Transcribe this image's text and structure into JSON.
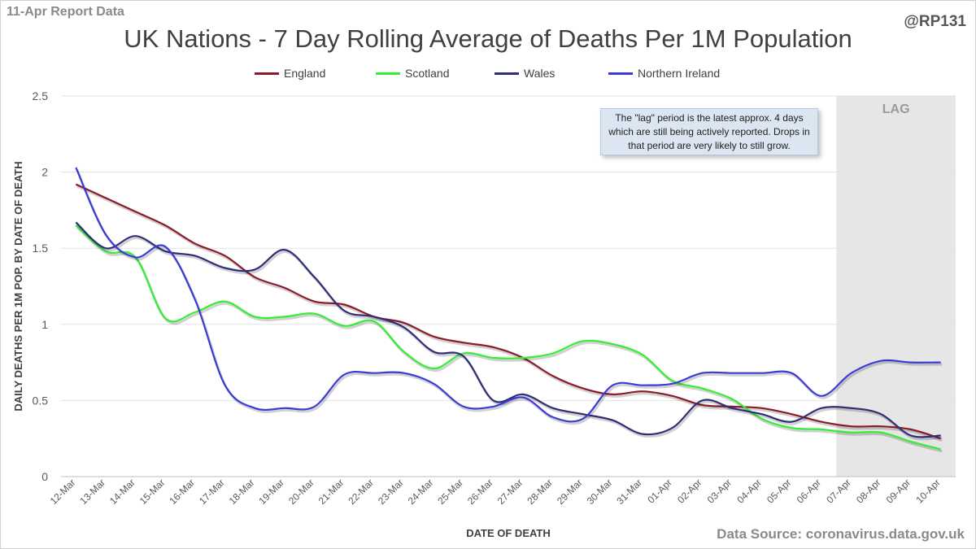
{
  "header": {
    "report_label": "11-Apr Report Data",
    "handle": "@RP131"
  },
  "footer": {
    "source": "Data Source: coronavirus.data.gov.uk"
  },
  "note": "The \"lag\" period is the latest approx. 4 days which are still being actively reported. Drops in that period are very likely to still grow.",
  "chart_data": {
    "type": "line",
    "title": "UK Nations - 7 Day Rolling Average of Deaths Per 1M Population",
    "xlabel": "DATE OF DEATH",
    "ylabel": "DAILY DEATHS PER 1M POP. BY DATE OF DEATH",
    "ylim": [
      0,
      2.5
    ],
    "yticks": [
      "0",
      "0.5",
      "1",
      "1.5",
      "2",
      "2.5"
    ],
    "grid": "horizontal",
    "legend": "top",
    "lag_label": "LAG",
    "lag_start": "07-Apr",
    "categories": [
      "12-Mar",
      "13-Mar",
      "14-Mar",
      "15-Mar",
      "16-Mar",
      "17-Mar",
      "18-Mar",
      "19-Mar",
      "20-Mar",
      "21-Mar",
      "22-Mar",
      "23-Mar",
      "24-Mar",
      "25-Mar",
      "26-Mar",
      "27-Mar",
      "28-Mar",
      "29-Mar",
      "30-Mar",
      "31-Mar",
      "01-Apr",
      "02-Apr",
      "03-Apr",
      "04-Apr",
      "05-Apr",
      "06-Apr",
      "07-Apr",
      "08-Apr",
      "09-Apr",
      "10-Apr"
    ],
    "series": [
      {
        "name": "England",
        "color": "#8b1a2b",
        "values": [
          1.92,
          1.83,
          1.74,
          1.65,
          1.53,
          1.45,
          1.31,
          1.24,
          1.15,
          1.13,
          1.05,
          1.01,
          0.92,
          0.88,
          0.85,
          0.78,
          0.66,
          0.58,
          0.54,
          0.56,
          0.53,
          0.47,
          0.46,
          0.45,
          0.41,
          0.36,
          0.33,
          0.33,
          0.31,
          0.25
        ]
      },
      {
        "name": "Scotland",
        "color": "#33ee33",
        "values": [
          1.65,
          1.48,
          1.44,
          1.04,
          1.08,
          1.15,
          1.05,
          1.05,
          1.07,
          0.99,
          1.02,
          0.82,
          0.71,
          0.81,
          0.78,
          0.78,
          0.81,
          0.89,
          0.87,
          0.8,
          0.63,
          0.58,
          0.51,
          0.38,
          0.32,
          0.31,
          0.29,
          0.29,
          0.23,
          0.18
        ]
      },
      {
        "name": "Wales",
        "color": "#2e2e78",
        "values": [
          1.67,
          1.5,
          1.58,
          1.48,
          1.45,
          1.37,
          1.36,
          1.49,
          1.31,
          1.09,
          1.05,
          0.98,
          0.82,
          0.79,
          0.5,
          0.54,
          0.45,
          0.41,
          0.37,
          0.28,
          0.32,
          0.5,
          0.45,
          0.41,
          0.36,
          0.45,
          0.45,
          0.41,
          0.27,
          0.27
        ]
      },
      {
        "name": "Northern Ireland",
        "color": "#3a3ad6",
        "values": [
          2.03,
          1.59,
          1.44,
          1.51,
          1.16,
          0.6,
          0.45,
          0.45,
          0.46,
          0.67,
          0.68,
          0.68,
          0.61,
          0.46,
          0.46,
          0.52,
          0.39,
          0.38,
          0.6,
          0.6,
          0.61,
          0.68,
          0.68,
          0.68,
          0.68,
          0.53,
          0.68,
          0.76,
          0.75,
          0.75
        ]
      }
    ]
  }
}
